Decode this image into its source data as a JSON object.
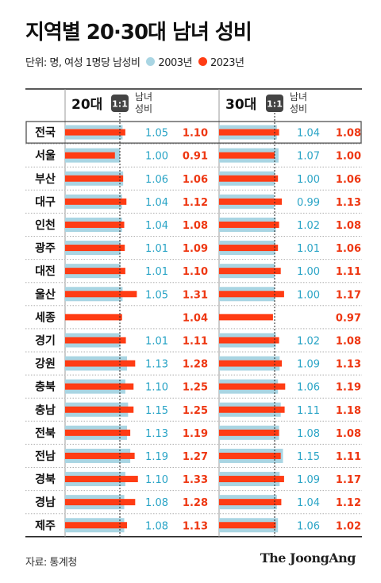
{
  "title": "지역별 20·30대 남녀 성비",
  "subtitle": {
    "unit": "단위: 명, 여성 1명당 남성비",
    "legend": [
      {
        "label": "2003년",
        "color": "#a9d5e3"
      },
      {
        "label": "2023년",
        "color": "#ff3c14"
      }
    ]
  },
  "source": "자료: 통계청",
  "brand": "The JoongAng",
  "chart_data": {
    "type": "bar",
    "reference_line": {
      "value": 1.0,
      "label": "1:1"
    },
    "value_column_header": "남녀 성비",
    "categories": [
      "전국",
      "서울",
      "부산",
      "대구",
      "인천",
      "광주",
      "대전",
      "울산",
      "세종",
      "경기",
      "강원",
      "충북",
      "충남",
      "전북",
      "전남",
      "경북",
      "경남",
      "제주"
    ],
    "highlighted_category": "전국",
    "panels": [
      {
        "name": "20대",
        "series": [
          {
            "name": "2003년",
            "color": "#a9d5e3",
            "values": [
              1.05,
              1.0,
              1.06,
              1.04,
              1.04,
              1.01,
              1.01,
              1.05,
              null,
              1.01,
              1.13,
              1.1,
              1.15,
              1.13,
              1.19,
              1.1,
              1.08,
              1.08
            ]
          },
          {
            "name": "2023년",
            "color": "#ff3c14",
            "values": [
              1.1,
              0.91,
              1.06,
              1.12,
              1.08,
              1.09,
              1.1,
              1.31,
              1.04,
              1.11,
              1.28,
              1.25,
              1.25,
              1.19,
              1.27,
              1.33,
              1.28,
              1.13
            ]
          }
        ]
      },
      {
        "name": "30대",
        "series": [
          {
            "name": "2003년",
            "color": "#a9d5e3",
            "values": [
              1.04,
              1.07,
              1.0,
              0.99,
              1.02,
              1.01,
              1.0,
              1.0,
              null,
              1.02,
              1.09,
              1.06,
              1.11,
              1.08,
              1.15,
              1.09,
              1.04,
              1.06
            ]
          },
          {
            "name": "2023년",
            "color": "#ff3c14",
            "values": [
              1.08,
              1.0,
              1.06,
              1.13,
              1.08,
              1.06,
              1.11,
              1.17,
              0.97,
              1.08,
              1.13,
              1.19,
              1.18,
              1.08,
              1.11,
              1.17,
              1.12,
              1.02
            ]
          }
        ]
      }
    ]
  }
}
